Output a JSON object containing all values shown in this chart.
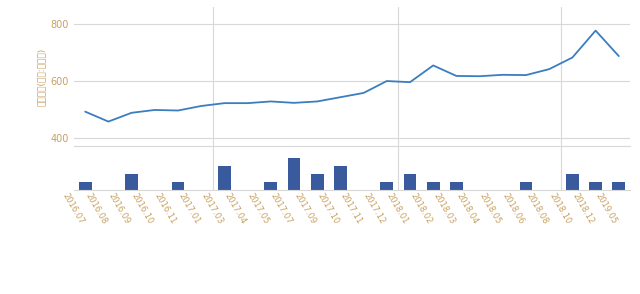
{
  "xlabel_rotation": -60,
  "ylabel": "거래금액(단위:백만원)",
  "line_color": "#3a7ebf",
  "bar_color": "#3a5a9e",
  "background_color": "#ffffff",
  "grid_color": "#d8d8d8",
  "tick_label_color": "#c8a060",
  "axis_label_color": "#555555",
  "labels": [
    "2016.07",
    "2016.08",
    "2016.09",
    "2016.10",
    "2016.11",
    "2017.01",
    "2017.03",
    "2017.04",
    "2017.05",
    "2017.07",
    "2017.09",
    "2017.10",
    "2017.11",
    "2017.12",
    "2018.01",
    "2018.02",
    "2018.03",
    "2018.04",
    "2018.05",
    "2018.06",
    "2018.08",
    "2018.10",
    "2018.12",
    "2019.05"
  ],
  "line_values": [
    492,
    457,
    488,
    498,
    496,
    512,
    522,
    522,
    528,
    523,
    528,
    543,
    558,
    600,
    596,
    655,
    618,
    617,
    622,
    621,
    642,
    683,
    778,
    688
  ],
  "bar_values": [
    1,
    0,
    2,
    0,
    1,
    0,
    3,
    0,
    1,
    4,
    2,
    3,
    0,
    1,
    2,
    1,
    1,
    0,
    0,
    1,
    0,
    2,
    1,
    1
  ],
  "ylim_line": [
    370,
    860
  ],
  "yticks_line": [
    400,
    600,
    800
  ],
  "bar_max": 5.5,
  "figsize": [
    6.4,
    2.94
  ],
  "dpi": 100
}
